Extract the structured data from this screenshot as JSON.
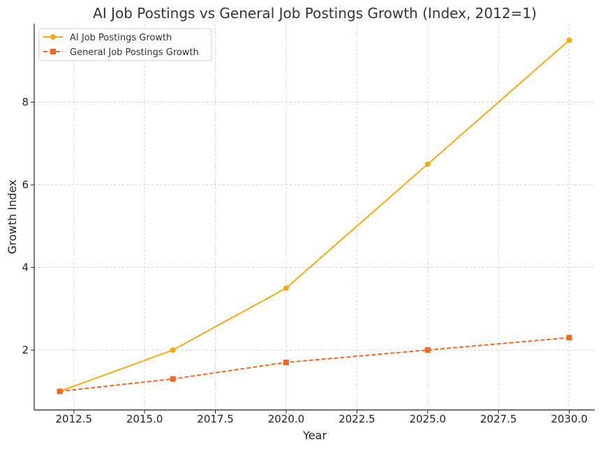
{
  "chart_data": {
    "type": "line",
    "title": "AI Job Postings vs General Job Postings Growth (Index, 2012=1)",
    "xlabel": "Year",
    "ylabel": "Growth Index",
    "xlim": [
      2011.1,
      2030.9
    ],
    "ylim": [
      0.55,
      9.9
    ],
    "xticks": [
      2012.5,
      2015.0,
      2017.5,
      2020.0,
      2022.5,
      2025.0,
      2027.5,
      2030.0
    ],
    "xtick_labels": [
      "2012.5",
      "2015.0",
      "2017.5",
      "2020.0",
      "2022.5",
      "2025.0",
      "2027.5",
      "2030.0"
    ],
    "yticks": [
      2,
      4,
      6,
      8
    ],
    "ytick_labels": [
      "2",
      "4",
      "6",
      "8"
    ],
    "grid": true,
    "legend_position": "top-left",
    "x": [
      2012,
      2016,
      2020,
      2025,
      2030
    ],
    "series": [
      {
        "name": "AI Job Postings Growth",
        "values": [
          1,
          2,
          3.5,
          6.5,
          9.5
        ],
        "color": "#f5aa14",
        "marker": "circle",
        "linestyle": "solid"
      },
      {
        "name": "General Job Postings Growth",
        "values": [
          1,
          1.3,
          1.7,
          2,
          2.3
        ],
        "color": "#ee6a24",
        "marker": "square",
        "linestyle": "dashed"
      }
    ]
  }
}
